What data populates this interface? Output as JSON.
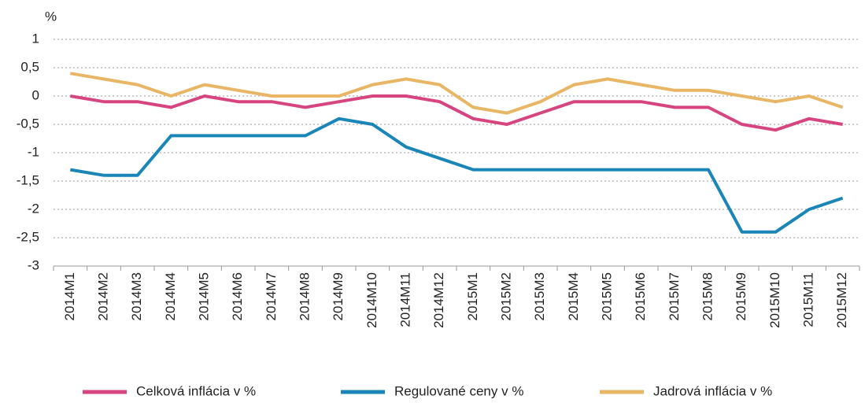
{
  "chart_data": {
    "type": "line",
    "y_axis_label": "%",
    "categories": [
      "2014M1",
      "2014M2",
      "2014M3",
      "2014M4",
      "2014M5",
      "2014M6",
      "2014M7",
      "2014M8",
      "2014M9",
      "2014M10",
      "2014M11",
      "2014M12",
      "2015M1",
      "2015M2",
      "2015M3",
      "2015M4",
      "2015M5",
      "2015M6",
      "2015M7",
      "2015M8",
      "2015M9",
      "2015M10",
      "2015M11",
      "2015M12"
    ],
    "series": [
      {
        "name": "Celková inflácia v %",
        "color": "#d6457f",
        "values": [
          0,
          -0.1,
          -0.1,
          -0.2,
          0,
          -0.1,
          -0.1,
          -0.2,
          -0.1,
          0,
          0,
          -0.1,
          -0.4,
          -0.5,
          -0.3,
          -0.1,
          -0.1,
          -0.1,
          -0.2,
          -0.2,
          -0.5,
          -0.6,
          -0.4,
          -0.5
        ]
      },
      {
        "name": "Regulované ceny v %",
        "color": "#1a86b8",
        "values": [
          -1.3,
          -1.4,
          -1.4,
          -0.7,
          -0.7,
          -0.7,
          -0.7,
          -0.7,
          -0.4,
          -0.5,
          -0.9,
          -1.1,
          -1.3,
          -1.3,
          -1.3,
          -1.3,
          -1.3,
          -1.3,
          -1.3,
          -1.3,
          -2.4,
          -2.4,
          -2,
          -1.8
        ]
      },
      {
        "name": "Jadrová inflácia v %",
        "color": "#e8b664",
        "values": [
          0.4,
          0.3,
          0.2,
          0,
          0.2,
          0.1,
          0,
          0,
          0,
          0.2,
          0.3,
          0.2,
          -0.2,
          -0.3,
          -0.1,
          0.2,
          0.3,
          0.2,
          0.1,
          0.1,
          0,
          -0.1,
          0,
          -0.2
        ]
      }
    ],
    "ylim": [
      -3,
      1
    ],
    "yticks": [
      1,
      {
        "value": 0.5,
        "label": "0,5"
      },
      0,
      {
        "value": -0.5,
        "label": "-0,5"
      },
      -1,
      {
        "value": -1.5,
        "label": "-1,5"
      },
      -2,
      {
        "value": -2.5,
        "label": "-2,5"
      },
      -3
    ],
    "grid": true,
    "legend": "bottom"
  }
}
